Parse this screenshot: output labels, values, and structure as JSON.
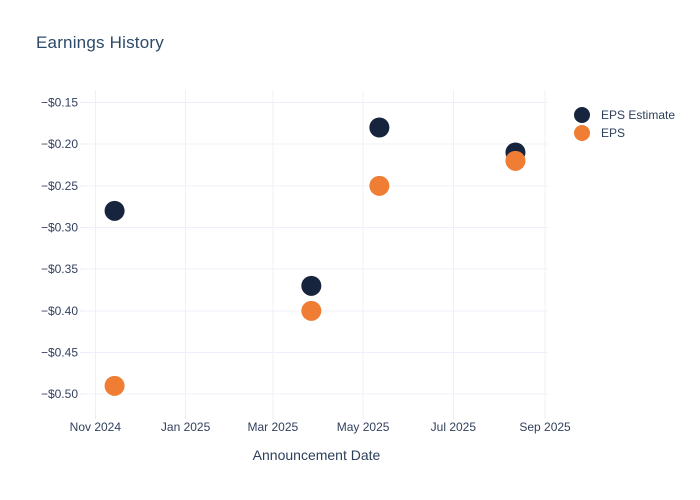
{
  "chart_data": {
    "type": "scatter",
    "title": "Earnings History",
    "xlabel": "Announcement Date",
    "ylabel": "",
    "grid": true,
    "legend_position": "right",
    "x_range": [
      "2024-10-25",
      "2025-09-03"
    ],
    "y_range": [
      -0.5238,
      -0.135
    ],
    "x_tick_dates": [
      "2024-11-01",
      "2025-01-01",
      "2025-03-01",
      "2025-05-01",
      "2025-07-01",
      "2025-09-01"
    ],
    "x_tick_labels": [
      "Nov 2024",
      "Jan 2025",
      "Mar 2025",
      "May 2025",
      "Jul 2025",
      "Sep 2025"
    ],
    "y_tick_values": [
      -0.15,
      -0.2,
      -0.25,
      -0.3,
      -0.35,
      -0.4,
      -0.45,
      -0.5
    ],
    "y_tick_labels": [
      "−$0.15",
      "−$0.20",
      "−$0.25",
      "−$0.30",
      "−$0.35",
      "−$0.40",
      "−$0.45",
      "−$0.50"
    ],
    "series": [
      {
        "name": "EPS Estimate",
        "color": "#16243d",
        "x": [
          "2024-11-14",
          "2025-03-27",
          "2025-05-12",
          "2025-08-12"
        ],
        "y": [
          -0.28,
          -0.37,
          -0.18,
          -0.21
        ]
      },
      {
        "name": "EPS",
        "color": "#ef7e34",
        "x": [
          "2024-11-14",
          "2025-03-27",
          "2025-05-12",
          "2025-08-12"
        ],
        "y": [
          -0.49,
          -0.4,
          -0.25,
          -0.22
        ]
      }
    ],
    "colors": {
      "grid": "#edf0f8",
      "tick_line": "#e8ebf3",
      "axis_text": "#33415e",
      "title_text": "#2d4a68",
      "legend_text": "#2d3f5c",
      "background": "#ffffff"
    }
  }
}
